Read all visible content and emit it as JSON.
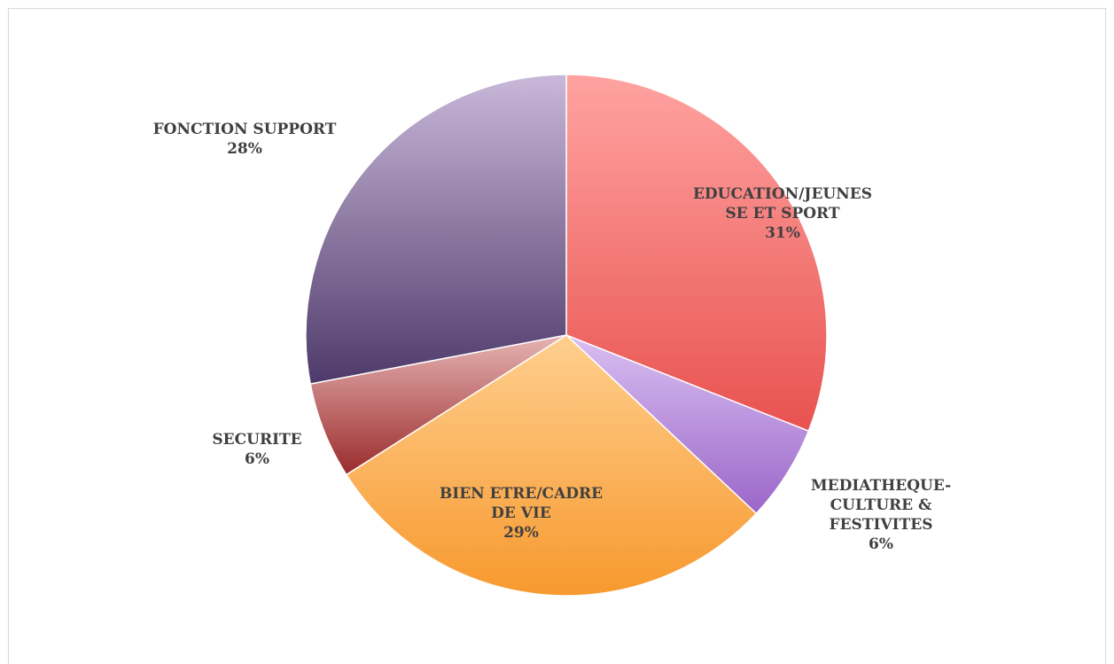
{
  "chart_data": {
    "type": "pie",
    "start_angle_deg": 0,
    "direction": "clockwise",
    "slices": [
      {
        "label_lines": [
          "EDUCATION/JEUNES",
          "SE ET SPORT"
        ],
        "percent_label": "31%",
        "value": 31,
        "color": "#e8524f",
        "color_light": "#ffa3a1"
      },
      {
        "label_lines": [
          "MEDIATHEQUE-",
          "CULTURE &",
          "FESTIVITES"
        ],
        "percent_label": "6%",
        "value": 6,
        "color": "#9b66c8",
        "color_light": "#d9bff2"
      },
      {
        "label_lines": [
          "BIEN ETRE/CADRE",
          "DE VIE"
        ],
        "percent_label": "29%",
        "value": 29,
        "color": "#f7992e",
        "color_light": "#ffcf8f"
      },
      {
        "label_lines": [
          "SECURITE"
        ],
        "percent_label": "6%",
        "value": 6,
        "color": "#9a2b2b",
        "color_light": "#e6b3b3"
      },
      {
        "label_lines": [
          "FONCTION SUPPORT"
        ],
        "percent_label": "28%",
        "value": 28,
        "color": "#4e3a6a",
        "color_light": "#c9b8d9"
      }
    ]
  }
}
